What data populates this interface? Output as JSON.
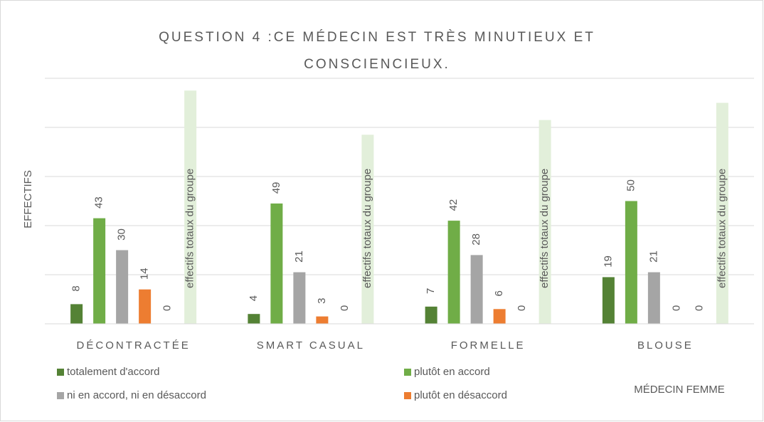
{
  "chart_data": {
    "type": "bar",
    "title": "QUESTION 4 :CE MÉDECIN EST TRÈS MINUTIEUX ET CONSCIENCIEUX.",
    "y_label": "EFFECTIFS",
    "annotation": "MÉDECIN FEMME",
    "categories": [
      "DÉCONTRACTÉE",
      "SMART CASUAL",
      "FORMELLE",
      "BLOUSE"
    ],
    "series": [
      {
        "name": "totalement d'accord",
        "color": "#548235",
        "values": [
          8,
          4,
          7,
          19
        ]
      },
      {
        "name": "plutôt en accord",
        "color": "#70ad47",
        "values": [
          43,
          49,
          42,
          50
        ]
      },
      {
        "name": "ni en accord, ni en désaccord",
        "color": "#a5a5a5",
        "values": [
          30,
          21,
          28,
          21
        ]
      },
      {
        "name": "plutôt en désaccord",
        "color": "#ed7d31",
        "values": [
          14,
          3,
          6,
          0
        ]
      },
      {
        "values": [
          0,
          0,
          0,
          0
        ]
      },
      {
        "name": "effectifs totaux du groupe",
        "color": "#e2efda",
        "values": [
          95,
          77,
          83,
          90
        ]
      }
    ],
    "ylim": [
      0,
      100
    ],
    "yticks": [
      0,
      20,
      40,
      60,
      80,
      100
    ],
    "grid": true
  }
}
